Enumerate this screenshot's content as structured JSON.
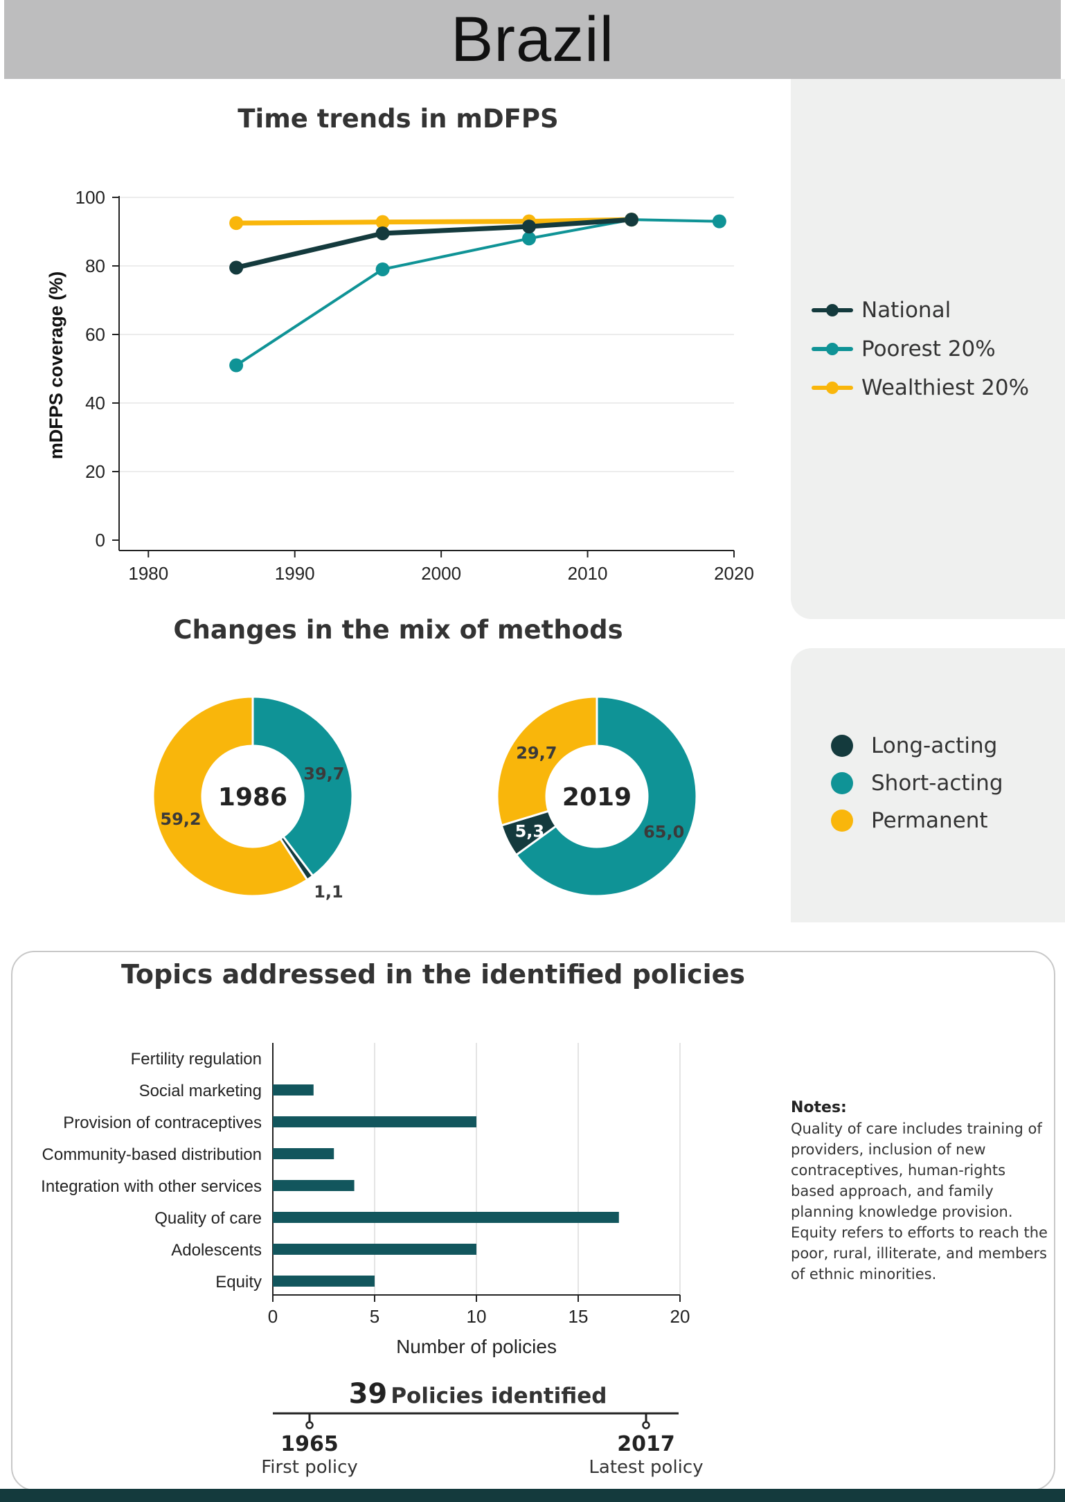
{
  "header": {
    "title": "Brazil"
  },
  "colors": {
    "national": "#143a3d",
    "poorest": "#0f9396",
    "wealthiest": "#f9b60b",
    "bar": "#12565d",
    "grey_panel": "#eff0ef"
  },
  "trend": {
    "title": "Time trends in mDFPS",
    "legend": [
      {
        "label": "National",
        "color": "#143a3d"
      },
      {
        "label": "Poorest 20%",
        "color": "#0f9396"
      },
      {
        "label": "Wealthiest 20%",
        "color": "#f9b60b"
      }
    ]
  },
  "mix": {
    "title": "Changes in the mix of methods",
    "legend": [
      {
        "label": "Long-acting",
        "color": "#143a3d"
      },
      {
        "label": "Short-acting",
        "color": "#0f9396"
      },
      {
        "label": "Permanent",
        "color": "#f9b60b"
      }
    ]
  },
  "policies": {
    "title": "Topics addressed in the identified policies",
    "count": "39",
    "count_label": "Policies identified",
    "first_year": "1965",
    "first_label": "First policy",
    "latest_year": "2017",
    "latest_label": "Latest policy",
    "notes_title": "Notes:",
    "notes_1": "Quality of care includes training of providers, inclusion of new contraceptives, human-rights based approach, and family planning knowledge provision.",
    "notes_2": "Equity refers to efforts to reach the poor, rural, illiterate, and members of ethnic minorities."
  },
  "chart_data": [
    {
      "type": "line",
      "title": "Time trends in mDFPS",
      "xlabel": "",
      "ylabel": "mDFPS coverage (%)",
      "xlim": [
        1978,
        2020
      ],
      "ylim": [
        0,
        100
      ],
      "xticks": [
        1980,
        1990,
        2000,
        2010,
        2020
      ],
      "yticks": [
        0,
        20,
        40,
        60,
        80,
        100
      ],
      "grid": true,
      "legend_position": "right",
      "series": [
        {
          "name": "National",
          "x": [
            1986,
            1996,
            2006,
            2013
          ],
          "values": [
            79.5,
            89.5,
            91.5,
            93.5
          ]
        },
        {
          "name": "Poorest 20%",
          "x": [
            1986,
            1996,
            2006,
            2013,
            2019
          ],
          "values": [
            51,
            79,
            88,
            93.5,
            93
          ]
        },
        {
          "name": "Wealthiest 20%",
          "x": [
            1986,
            1996,
            2006,
            2013
          ],
          "values": [
            92.5,
            92.8,
            93,
            93.5
          ]
        }
      ]
    },
    {
      "type": "pie",
      "title": "1986",
      "labels": [
        "Long-acting",
        "Short-acting",
        "Permanent"
      ],
      "values": [
        1.1,
        39.7,
        59.2
      ],
      "value_labels": [
        "1,1",
        "39,7",
        "59,2"
      ]
    },
    {
      "type": "pie",
      "title": "2019",
      "labels": [
        "Long-acting",
        "Short-acting",
        "Permanent"
      ],
      "values": [
        5.3,
        65.0,
        29.7
      ],
      "value_labels": [
        "5,3",
        "65,0",
        "29,7"
      ]
    },
    {
      "type": "bar",
      "orientation": "horizontal",
      "title": "Topics addressed in the identified policies",
      "xlabel": "Number of policies",
      "ylabel": "",
      "xlim": [
        0,
        20
      ],
      "xticks": [
        0,
        5,
        10,
        15,
        20
      ],
      "grid": true,
      "categories": [
        "Fertility regulation",
        "Social marketing",
        "Provision of contraceptives",
        "Community-based distribution",
        "Integration with other services",
        "Quality of care",
        "Adolescents",
        "Equity"
      ],
      "values": [
        0,
        2,
        10,
        3,
        4,
        17,
        10,
        5
      ]
    }
  ]
}
